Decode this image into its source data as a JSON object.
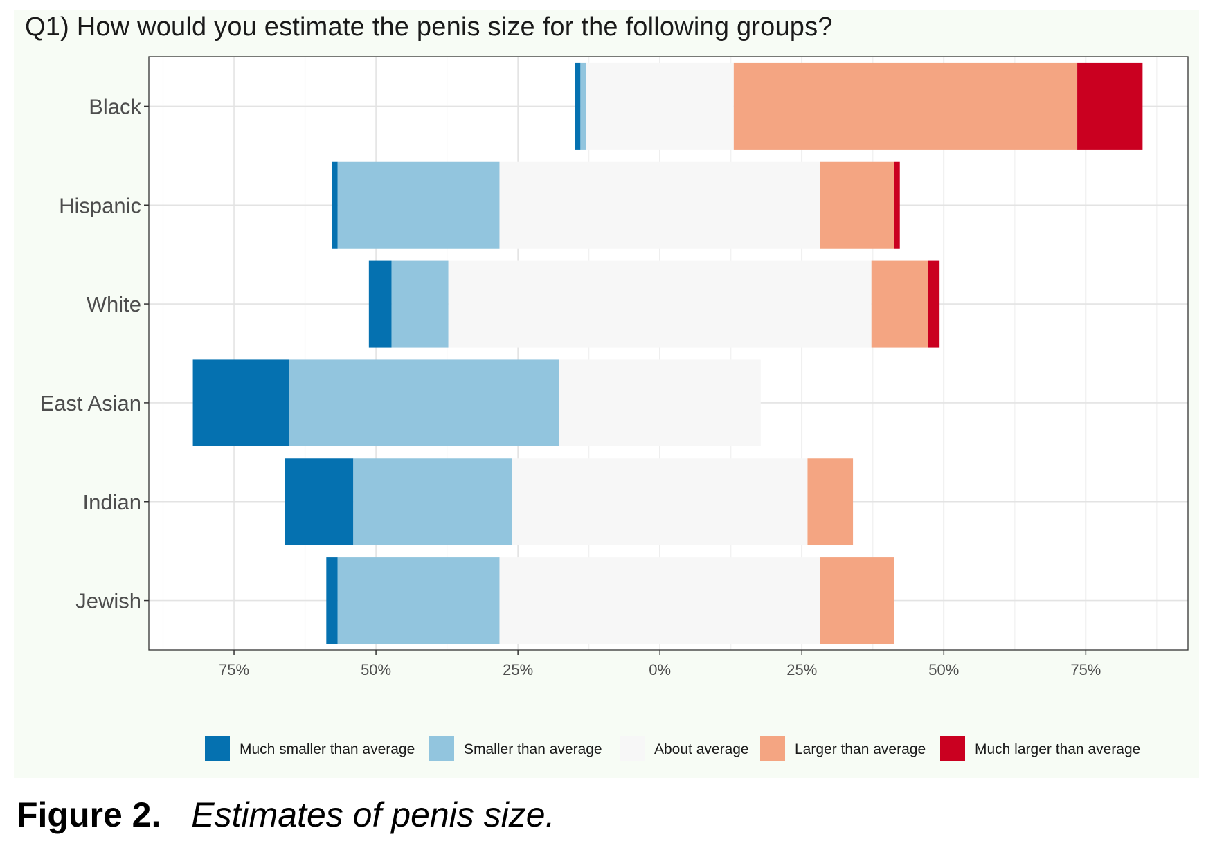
{
  "chart_data": {
    "type": "bar",
    "orientation": "horizontal",
    "stacked": true,
    "diverging": true,
    "title": "Q1) How would you estimate the penis size for the following groups?",
    "categories": [
      "Black",
      "Hispanic",
      "White",
      "East Asian",
      "Indian",
      "Jewish"
    ],
    "series": [
      {
        "name": "Much smaller than average",
        "color": "#0571b0",
        "values": [
          1,
          1,
          4,
          17,
          12,
          2
        ]
      },
      {
        "name": "Smaller than average",
        "color": "#92c5de",
        "values": [
          1,
          28.5,
          10,
          47.5,
          28,
          28.5
        ]
      },
      {
        "name": "About average",
        "color": "#f7f7f7",
        "values": [
          26,
          56.5,
          74.5,
          35.5,
          52,
          56.5
        ]
      },
      {
        "name": "Larger than average",
        "color": "#f4a582",
        "values": [
          60.5,
          13,
          10,
          0,
          8,
          13
        ]
      },
      {
        "name": "Much larger than average",
        "color": "#ca0020",
        "values": [
          11.5,
          1,
          2,
          0,
          0,
          0
        ]
      }
    ],
    "x_tick_labels": [
      "75%",
      "50%",
      "25%",
      "0%",
      "25%",
      "50%",
      "75%"
    ],
    "x_ticks": [
      -75,
      -50,
      -25,
      0,
      25,
      50,
      75
    ],
    "xlim": [
      -90,
      93
    ],
    "xlabel": "",
    "ylabel": "",
    "grid": true,
    "legend_position": "bottom"
  },
  "caption": {
    "label": "Figure 2.",
    "text": "Estimates of penis size."
  }
}
